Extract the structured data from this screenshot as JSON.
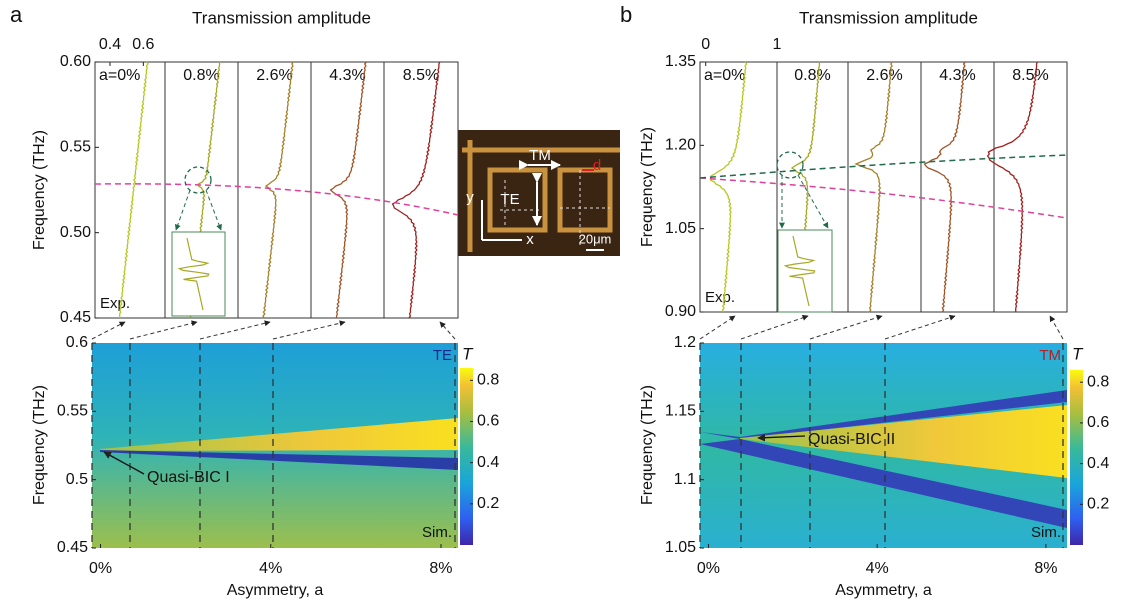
{
  "panels": [
    {
      "label": "a",
      "top_title": "Transmission amplitude",
      "top_ticks": [
        0.4,
        0.6
      ],
      "top_xlim": [
        0.31,
        0.73
      ],
      "exp_ylabel": "Frequency (THz)",
      "exp_ylim": [
        0.45,
        0.6
      ],
      "exp_yticks": [
        0.45,
        {
          "value": 0.5,
          "label": "0.50"
        },
        0.55,
        {
          "value": 0.6,
          "label": "0.60"
        }
      ],
      "sublabels": [
        "a=0%",
        "0.8%",
        "2.6%",
        "4.3%",
        "8.5%"
      ],
      "exp_corner": "Exp.",
      "sim_ylabel": "Frequency (THz)",
      "sim_ylim": [
        0.45,
        0.6
      ],
      "sim_yticks": [
        0.45,
        0.5,
        0.55,
        0.6
      ],
      "sim_xlabel": "Asymmetry, a",
      "sim_xlim": [
        -0.2,
        8.4
      ],
      "sim_xticks": [
        {
          "value": 0,
          "label": "0%"
        },
        {
          "value": 4,
          "label": "4%"
        },
        {
          "value": 8,
          "label": "8%"
        }
      ],
      "mode": "TE",
      "sim_corner": "Sim.",
      "annotation": "Quasi-BIC I",
      "cbar_title": "T",
      "cbar_lim": [
        0,
        0.86
      ],
      "cbar_ticks": [
        0.2,
        0.4,
        0.6,
        0.8
      ]
    },
    {
      "label": "b",
      "top_title": "Transmission amplitude",
      "top_ticks": [
        0,
        1
      ],
      "top_xlim": [
        -0.08,
        1
      ],
      "exp_ylabel": "Frequency (THz)",
      "exp_ylim": [
        0.9,
        1.35
      ],
      "exp_yticks": [
        {
          "value": 0.9,
          "label": "0.90"
        },
        1.05,
        {
          "value": 1.2,
          "label": "1.20"
        },
        1.35
      ],
      "sublabels": [
        "a=0%",
        "0.8%",
        "2.6%",
        "4.3%",
        "8.5%"
      ],
      "exp_corner": "Exp.",
      "sim_ylabel": "Frequency (THz)",
      "sim_ylim": [
        1.05,
        1.2
      ],
      "sim_yticks": [
        1.05,
        1.1,
        1.15,
        1.2
      ],
      "sim_xlabel": "Asymmetry, a",
      "sim_xlim": [
        -0.2,
        8.5
      ],
      "sim_xticks": [
        {
          "value": 0,
          "label": "0%"
        },
        {
          "value": 4,
          "label": "4%"
        },
        {
          "value": 8,
          "label": "8%"
        }
      ],
      "mode": "TM",
      "sim_corner": "Sim.",
      "annotation": "Quasi-BIC II",
      "cbar_title": "T",
      "cbar_lim": [
        0,
        0.86
      ],
      "cbar_ticks": [
        0.2,
        0.4,
        0.6,
        0.8
      ]
    }
  ],
  "inset": {
    "tm": "TM",
    "te": "TE",
    "x": "x",
    "y": "y",
    "d": "d",
    "scale": "20μm"
  }
}
